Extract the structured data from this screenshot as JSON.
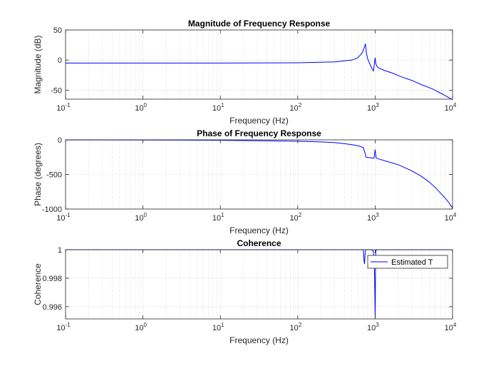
{
  "chart_data": [
    {
      "type": "line",
      "title": "Magnitude of Frequency Response",
      "xlabel": "Frequency (Hz)",
      "ylabel": "Magnitude (dB)",
      "xscale": "log",
      "xlim": [
        0.1,
        10000
      ],
      "ylim": [
        -65,
        50
      ],
      "xticks": [
        0.1,
        1,
        10,
        100,
        1000,
        10000
      ],
      "xtick_labels": [
        {
          "base": "10",
          "exp": "-1"
        },
        {
          "base": "10",
          "exp": "0"
        },
        {
          "base": "10",
          "exp": "1"
        },
        {
          "base": "10",
          "exp": "2"
        },
        {
          "base": "10",
          "exp": "3"
        },
        {
          "base": "10",
          "exp": "4"
        }
      ],
      "yticks": [
        50,
        0,
        -50
      ],
      "ytick_labels": [
        "50",
        "0",
        "-50"
      ],
      "grid": true,
      "color": "#0000ff",
      "series": [
        {
          "x": [
            0.1,
            1,
            10,
            100,
            300,
            500,
            600,
            680,
            720,
            750,
            770,
            800,
            850,
            900,
            950,
            980,
            1000,
            1020,
            1050,
            1100,
            1300,
            1700,
            2200,
            3000,
            4000,
            5500,
            7500,
            10000
          ],
          "y": [
            -5,
            -5,
            -5,
            -4.5,
            -3,
            0,
            4,
            12,
            20,
            27,
            12,
            2,
            -6,
            -13,
            -18,
            -5,
            4,
            -6,
            -10,
            -13,
            -17,
            -22,
            -28,
            -34,
            -41,
            -48,
            -57,
            -66
          ]
        }
      ]
    },
    {
      "type": "line",
      "title": "Phase of Frequency Response",
      "xlabel": "Frequency (Hz)",
      "ylabel": "Phase (degrees)",
      "xscale": "log",
      "xlim": [
        0.1,
        10000
      ],
      "ylim": [
        -1000,
        0
      ],
      "xticks": [
        0.1,
        1,
        10,
        100,
        1000,
        10000
      ],
      "xtick_labels": [
        {
          "base": "10",
          "exp": "-1"
        },
        {
          "base": "10",
          "exp": "0"
        },
        {
          "base": "10",
          "exp": "1"
        },
        {
          "base": "10",
          "exp": "2"
        },
        {
          "base": "10",
          "exp": "3"
        },
        {
          "base": "10",
          "exp": "4"
        }
      ],
      "yticks": [
        0,
        -500,
        -1000
      ],
      "ytick_labels": [
        "0",
        "-500",
        "-1000"
      ],
      "grid": true,
      "color": "#0000ff",
      "series": [
        {
          "x": [
            0.1,
            1,
            10,
            100,
            200,
            300,
            400,
            500,
            600,
            700,
            740,
            760,
            800,
            900,
            970,
            1000,
            1030,
            1100,
            1500,
            2000,
            3000,
            4000,
            5000,
            6000,
            7000,
            8000,
            9000,
            10000
          ],
          "y": [
            -1,
            -2,
            -6,
            -20,
            -30,
            -40,
            -55,
            -70,
            -85,
            -110,
            -190,
            -250,
            -255,
            -262,
            -262,
            -140,
            -262,
            -275,
            -320,
            -360,
            -450,
            -530,
            -610,
            -690,
            -770,
            -840,
            -910,
            -985
          ]
        }
      ]
    },
    {
      "type": "line",
      "title": "Coherence",
      "xlabel": "Frequency (Hz)",
      "ylabel": "Coherence",
      "xscale": "log",
      "xlim": [
        0.1,
        10000
      ],
      "ylim": [
        0.99514,
        1.0
      ],
      "xticks": [
        0.1,
        1,
        10,
        100,
        1000,
        10000
      ],
      "xtick_labels": [
        {
          "base": "10",
          "exp": "-1"
        },
        {
          "base": "10",
          "exp": "0"
        },
        {
          "base": "10",
          "exp": "1"
        },
        {
          "base": "10",
          "exp": "2"
        },
        {
          "base": "10",
          "exp": "3"
        },
        {
          "base": "10",
          "exp": "4"
        }
      ],
      "yticks": [
        1.0,
        0.998,
        0.996
      ],
      "ytick_labels": [
        "1",
        "0.998",
        "0.996"
      ],
      "grid": true,
      "legend": {
        "entries": [
          "Estimated T"
        ],
        "position": "top-right"
      },
      "color": "#0000ff",
      "series": [
        {
          "name": "Estimated T",
          "x": [
            0.1,
            100,
            500,
            650,
            700,
            710,
            720,
            730,
            740,
            750,
            760,
            780,
            800,
            850,
            900,
            950,
            980,
            990,
            1000,
            1005,
            1010,
            1020,
            1040,
            1100,
            1500,
            2000,
            10000
          ],
          "y": [
            1.0,
            1.0,
            1.0,
            1.0,
            1.0,
            0.9998,
            0.9992,
            0.999,
            0.9996,
            0.99995,
            1.0,
            1.0,
            1.0,
            1.0,
            1.0,
            0.9999,
            0.9985,
            0.997,
            0.9952,
            0.9965,
            0.9985,
            0.9999,
            1.0,
            1.0,
            1.0,
            1.0,
            1.0
          ]
        }
      ]
    }
  ]
}
